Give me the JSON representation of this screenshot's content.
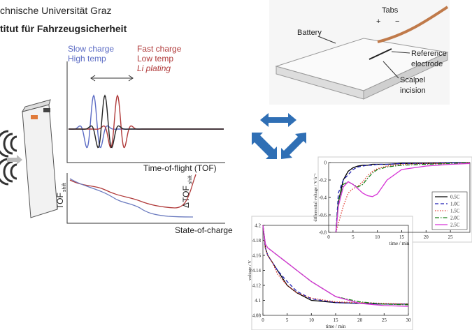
{
  "header": {
    "line1": "chnische Universität Graz",
    "line2": "titut für Fahrzeugsicherheit"
  },
  "ultrasound_figure": {
    "slow_labels": [
      "Slow charge",
      "High temp"
    ],
    "fast_labels": [
      "Fast charge",
      "Low temp",
      "Li plating"
    ],
    "top_xlabel": "Time-of-flight (TOF)",
    "bottom_xlabel": "State-of-charge",
    "bottom_ylabel": {
      "text": "TOF",
      "subscript": "shift"
    },
    "bottom_y2label": {
      "text": "ΔTOF",
      "subscript": "shift"
    }
  },
  "cell_figure": {
    "tabs": "Tabs",
    "plus": "+",
    "minus": "−",
    "battery": "Battery",
    "reference": [
      "Reference",
      "electrode"
    ],
    "scalpel": [
      "Scalpel",
      "incision"
    ]
  },
  "chart_data": [
    {
      "type": "line",
      "ylabel": "differential voltage / V h⁻¹",
      "xlabel": "time / min",
      "x": [
        1.5,
        2,
        3,
        4,
        5,
        6,
        7,
        8,
        9,
        10,
        12,
        15,
        20,
        25,
        29
      ],
      "xlim": [
        0,
        29
      ],
      "ylim": [
        -0.8,
        0
      ],
      "xticks": [
        0,
        5,
        10,
        15,
        20,
        25
      ],
      "yticks": [
        0,
        -0.2,
        -0.4,
        -0.6,
        -0.8
      ],
      "legend": "lower right",
      "series": [
        {
          "name": "0.5C",
          "color": "#000000",
          "linestyle": "solid",
          "values": [
            -0.8,
            -0.45,
            -0.2,
            -0.1,
            -0.06,
            -0.04,
            -0.03,
            -0.03,
            -0.02,
            -0.02,
            -0.02,
            -0.01,
            -0.01,
            0,
            0
          ]
        },
        {
          "name": "1.0C",
          "color": "#1f1fb4",
          "linestyle": "dashed",
          "values": [
            -0.8,
            -0.35,
            -0.2,
            -0.14,
            -0.08,
            -0.05,
            -0.04,
            -0.03,
            -0.03,
            -0.02,
            -0.02,
            -0.01,
            -0.01,
            0,
            0
          ]
        },
        {
          "name": "1.5C",
          "color": "#e0362c",
          "linestyle": "dotted",
          "values": [
            -0.8,
            -0.7,
            -0.5,
            -0.35,
            -0.3,
            -0.27,
            -0.22,
            -0.15,
            -0.1,
            -0.07,
            -0.04,
            -0.02,
            -0.01,
            -0.01,
            0
          ]
        },
        {
          "name": "2.0C",
          "color": "#1a7f1a",
          "linestyle": "dashdot",
          "values": [
            -0.8,
            -0.45,
            -0.25,
            -0.22,
            -0.25,
            -0.28,
            -0.25,
            -0.18,
            -0.12,
            -0.08,
            -0.05,
            -0.03,
            -0.02,
            -0.01,
            0
          ]
        },
        {
          "name": "2.5C",
          "color": "#d633d6",
          "linestyle": "solid",
          "values": [
            -0.8,
            -0.5,
            -0.28,
            -0.22,
            -0.25,
            -0.3,
            -0.35,
            -0.38,
            -0.39,
            -0.36,
            -0.2,
            -0.08,
            -0.04,
            -0.02,
            -0.01
          ]
        }
      ]
    },
    {
      "type": "line",
      "ylabel": "voltage / V",
      "xlabel": "time / min",
      "x": [
        0,
        0.5,
        1,
        2,
        3,
        5,
        7,
        10,
        15,
        20,
        25,
        30
      ],
      "xlim": [
        0,
        30
      ],
      "ylim": [
        4.08,
        4.2
      ],
      "xticks": [
        0,
        5,
        10,
        15,
        20,
        25,
        30
      ],
      "yticks": [
        4.08,
        4.1,
        4.12,
        4.14,
        4.16,
        4.18,
        4.2
      ],
      "series": [
        {
          "color": "#000000",
          "linestyle": "solid",
          "values": [
            4.2,
            4.17,
            4.16,
            4.15,
            4.14,
            4.12,
            4.11,
            4.1,
            4.097,
            4.096,
            4.095,
            4.095
          ]
        },
        {
          "color": "#1f1fb4",
          "linestyle": "dashed",
          "values": [
            4.2,
            4.17,
            4.16,
            4.15,
            4.14,
            4.125,
            4.112,
            4.102,
            4.097,
            4.096,
            4.095,
            4.095
          ]
        },
        {
          "color": "#e0362c",
          "linestyle": "dotted",
          "values": [
            4.2,
            4.17,
            4.16,
            4.15,
            4.135,
            4.12,
            4.11,
            4.103,
            4.098,
            4.097,
            4.096,
            4.095
          ]
        },
        {
          "color": "#1a7f1a",
          "linestyle": "dashdot",
          "values": [
            4.2,
            4.175,
            4.17,
            4.165,
            4.16,
            4.15,
            4.14,
            4.125,
            4.105,
            4.098,
            4.095,
            4.094
          ]
        },
        {
          "color": "#d633d6",
          "linestyle": "solid",
          "values": [
            4.2,
            4.175,
            4.17,
            4.165,
            4.16,
            4.15,
            4.14,
            4.125,
            4.105,
            4.096,
            4.093,
            4.092
          ]
        }
      ]
    }
  ]
}
